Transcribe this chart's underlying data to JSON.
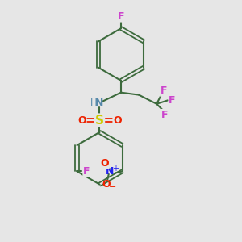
{
  "bg_color": "#e6e6e6",
  "bond_color": "#3d6b3d",
  "colors": {
    "F": "#cc44cc",
    "N_nh": "#5588aa",
    "N_no2": "#2222ee",
    "S": "#cccc00",
    "O": "#ee2200"
  },
  "figsize": [
    3.0,
    3.0
  ],
  "dpi": 100,
  "xlim": [
    0,
    10
  ],
  "ylim": [
    0,
    10
  ]
}
